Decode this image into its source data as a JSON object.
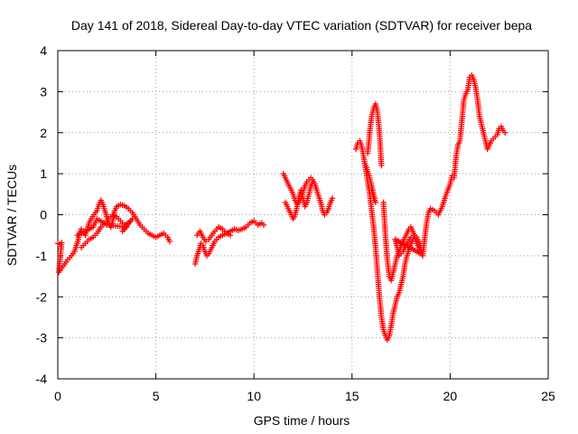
{
  "chart_data": {
    "type": "scatter",
    "title": "Day 141 of 2018, Sidereal Day-to-day VTEC variation (SDTVAR) for receiver bepa",
    "xlabel": "GPS time / hours",
    "ylabel": "SDTVAR / TECUs",
    "xlim": [
      0,
      25
    ],
    "ylim": [
      -4,
      4
    ],
    "xticks": [
      0,
      5,
      10,
      15,
      20,
      25
    ],
    "yticks": [
      -4,
      -3,
      -2,
      -1,
      0,
      1,
      2,
      3,
      4
    ],
    "xtick_labels": [
      "0",
      "5",
      "10",
      "15",
      "20",
      "25"
    ],
    "ytick_labels": [
      "-4",
      "-3",
      "-2",
      "-1",
      "0",
      "1",
      "2",
      "3",
      "4"
    ],
    "grid": true,
    "marker": "+",
    "color": "#ff0000",
    "series": [
      {
        "name": "SDTVAR",
        "segments": [
          [
            [
              0.0,
              -0.7
            ],
            [
              0.1,
              -0.72
            ],
            [
              0.2,
              -0.68
            ],
            [
              0.05,
              -1.4
            ],
            [
              0.2,
              -1.3
            ],
            [
              0.35,
              -1.2
            ],
            [
              0.5,
              -1.1
            ],
            [
              0.7,
              -1.0
            ],
            [
              0.85,
              -0.9
            ],
            [
              0.95,
              -0.75
            ],
            [
              1.05,
              -0.6
            ],
            [
              1.1,
              -0.45
            ],
            [
              1.2,
              -0.35
            ],
            [
              1.3,
              -0.4
            ],
            [
              1.4,
              -0.5
            ],
            [
              1.5,
              -0.35
            ],
            [
              1.6,
              -0.2
            ],
            [
              1.7,
              -0.1
            ],
            [
              1.85,
              0.0
            ],
            [
              2.0,
              0.1
            ],
            [
              2.1,
              0.25
            ],
            [
              2.2,
              0.35
            ],
            [
              2.3,
              0.25
            ],
            [
              2.4,
              0.1
            ],
            [
              2.5,
              -0.05
            ],
            [
              2.6,
              -0.2
            ],
            [
              2.7,
              -0.3
            ],
            [
              2.8,
              -0.15
            ],
            [
              2.9,
              0.1
            ],
            [
              3.0,
              0.2
            ],
            [
              3.2,
              0.25
            ],
            [
              3.4,
              0.22
            ],
            [
              3.6,
              0.15
            ],
            [
              3.8,
              0.05
            ],
            [
              4.0,
              -0.1
            ],
            [
              4.2,
              -0.25
            ],
            [
              4.4,
              -0.35
            ],
            [
              4.6,
              -0.45
            ],
            [
              4.8,
              -0.5
            ],
            [
              5.0,
              -0.55
            ],
            [
              5.2,
              -0.5
            ],
            [
              5.4,
              -0.45
            ],
            [
              5.6,
              -0.55
            ],
            [
              5.7,
              -0.65
            ],
            [
              1.2,
              -0.8
            ],
            [
              1.4,
              -0.7
            ],
            [
              1.6,
              -0.6
            ],
            [
              1.8,
              -0.55
            ],
            [
              2.0,
              -0.45
            ],
            [
              2.2,
              -0.3
            ],
            [
              2.4,
              -0.2
            ],
            [
              2.6,
              -0.1
            ],
            [
              2.8,
              0.0
            ],
            [
              3.0,
              -0.05
            ],
            [
              3.2,
              -0.15
            ],
            [
              3.4,
              -0.25
            ],
            [
              3.6,
              -0.2
            ],
            [
              3.8,
              -0.1
            ],
            [
              3.3,
              -0.4
            ],
            [
              3.5,
              -0.3
            ],
            [
              2.5,
              -0.25
            ],
            [
              2.0,
              -0.1
            ],
            [
              1.8,
              -0.3
            ],
            [
              1.0,
              -0.5
            ]
          ],
          [
            [
              7.0,
              -1.2
            ],
            [
              7.1,
              -1.0
            ],
            [
              7.2,
              -0.85
            ],
            [
              7.3,
              -0.7
            ],
            [
              7.4,
              -0.75
            ],
            [
              7.5,
              -0.9
            ],
            [
              7.6,
              -1.0
            ],
            [
              7.7,
              -0.95
            ],
            [
              7.8,
              -0.85
            ],
            [
              7.9,
              -0.75
            ],
            [
              8.0,
              -0.65
            ],
            [
              8.2,
              -0.55
            ],
            [
              8.4,
              -0.5
            ],
            [
              8.6,
              -0.45
            ],
            [
              8.8,
              -0.4
            ],
            [
              9.0,
              -0.35
            ],
            [
              9.2,
              -0.38
            ],
            [
              9.4,
              -0.35
            ],
            [
              9.6,
              -0.3
            ],
            [
              9.8,
              -0.2
            ],
            [
              10.0,
              -0.15
            ],
            [
              10.2,
              -0.25
            ],
            [
              10.4,
              -0.2
            ],
            [
              10.5,
              -0.25
            ],
            [
              7.1,
              -0.5
            ],
            [
              7.25,
              -0.4
            ],
            [
              7.4,
              -0.55
            ],
            [
              7.55,
              -0.65
            ],
            [
              7.7,
              -0.6
            ],
            [
              7.85,
              -0.5
            ],
            [
              8.0,
              -0.4
            ],
            [
              8.2,
              -0.3
            ],
            [
              8.4,
              -0.35
            ],
            [
              8.6,
              -0.45
            ],
            [
              8.8,
              -0.5
            ]
          ],
          [
            [
              11.5,
              1.0
            ],
            [
              11.6,
              0.9
            ],
            [
              11.7,
              0.8
            ],
            [
              11.8,
              0.7
            ],
            [
              11.9,
              0.6
            ],
            [
              12.0,
              0.5
            ],
            [
              12.1,
              0.35
            ],
            [
              12.2,
              0.25
            ],
            [
              12.3,
              0.3
            ],
            [
              12.4,
              0.4
            ],
            [
              12.5,
              0.55
            ],
            [
              12.6,
              0.7
            ],
            [
              12.7,
              0.8
            ],
            [
              12.8,
              0.85
            ],
            [
              12.9,
              0.9
            ],
            [
              13.0,
              0.85
            ],
            [
              13.1,
              0.75
            ],
            [
              13.2,
              0.6
            ],
            [
              13.3,
              0.45
            ],
            [
              13.4,
              0.3
            ],
            [
              13.5,
              0.1
            ],
            [
              13.6,
              0.0
            ],
            [
              13.7,
              0.05
            ],
            [
              13.8,
              0.15
            ],
            [
              13.9,
              0.3
            ],
            [
              14.0,
              0.4
            ],
            [
              11.6,
              0.3
            ],
            [
              11.7,
              0.2
            ],
            [
              11.8,
              0.1
            ],
            [
              11.9,
              0.0
            ],
            [
              12.0,
              -0.1
            ],
            [
              12.1,
              0.0
            ],
            [
              12.2,
              0.2
            ],
            [
              12.3,
              0.45
            ],
            [
              12.4,
              0.6
            ],
            [
              12.5,
              0.4
            ],
            [
              12.6,
              0.2
            ],
            [
              12.7,
              0.3
            ],
            [
              12.8,
              0.5
            ],
            [
              12.9,
              0.7
            ],
            [
              13.0,
              0.8
            ]
          ],
          [
            [
              15.2,
              1.6
            ],
            [
              15.3,
              1.75
            ],
            [
              15.4,
              1.8
            ],
            [
              15.5,
              1.65
            ],
            [
              15.6,
              1.4
            ],
            [
              15.7,
              1.1
            ],
            [
              15.8,
              0.8
            ],
            [
              15.9,
              0.5
            ],
            [
              16.0,
              0.1
            ],
            [
              16.1,
              -0.3
            ],
            [
              16.2,
              -0.8
            ],
            [
              16.3,
              -1.4
            ],
            [
              16.4,
              -2.0
            ],
            [
              16.5,
              -2.5
            ],
            [
              16.6,
              -2.8
            ],
            [
              16.7,
              -2.95
            ],
            [
              16.8,
              -3.05
            ],
            [
              16.9,
              -2.95
            ],
            [
              17.0,
              -2.7
            ],
            [
              17.1,
              -2.4
            ],
            [
              17.2,
              -2.2
            ],
            [
              17.3,
              -2.0
            ],
            [
              17.4,
              -1.9
            ],
            [
              17.5,
              -1.7
            ],
            [
              17.6,
              -1.5
            ],
            [
              17.7,
              -1.2
            ],
            [
              17.8,
              -1.0
            ],
            [
              17.9,
              -0.85
            ],
            [
              18.0,
              -0.7
            ],
            [
              18.1,
              -0.6
            ],
            [
              18.2,
              -0.5
            ],
            [
              18.3,
              -0.55
            ],
            [
              18.4,
              -0.65
            ],
            [
              18.5,
              -0.8
            ],
            [
              18.6,
              -1.0
            ],
            [
              18.7,
              -0.6
            ],
            [
              18.8,
              -0.2
            ],
            [
              18.9,
              0.05
            ],
            [
              19.0,
              0.15
            ],
            [
              19.2,
              0.1
            ],
            [
              19.4,
              0.0
            ],
            [
              19.6,
              0.2
            ],
            [
              19.8,
              0.5
            ],
            [
              20.0,
              0.75
            ],
            [
              20.1,
              0.95
            ],
            [
              20.2,
              0.9
            ],
            [
              20.3,
              1.4
            ],
            [
              20.4,
              1.7
            ],
            [
              20.5,
              1.8
            ],
            [
              20.6,
              2.3
            ],
            [
              20.7,
              2.8
            ],
            [
              20.8,
              2.95
            ],
            [
              20.9,
              3.05
            ],
            [
              21.0,
              3.35
            ],
            [
              21.1,
              3.4
            ],
            [
              21.2,
              3.3
            ],
            [
              21.3,
              3.1
            ],
            [
              21.4,
              2.8
            ],
            [
              21.5,
              2.4
            ],
            [
              21.6,
              2.2
            ],
            [
              21.7,
              2.0
            ],
            [
              21.8,
              1.8
            ],
            [
              21.9,
              1.6
            ],
            [
              22.0,
              1.7
            ],
            [
              22.1,
              1.8
            ],
            [
              22.2,
              1.85
            ],
            [
              22.4,
              1.95
            ],
            [
              22.5,
              2.1
            ],
            [
              22.6,
              2.15
            ],
            [
              22.7,
              2.05
            ],
            [
              22.8,
              2.0
            ],
            [
              15.8,
              1.5
            ],
            [
              15.9,
              2.0
            ],
            [
              16.0,
              2.4
            ],
            [
              16.1,
              2.6
            ],
            [
              16.2,
              2.7
            ],
            [
              16.3,
              2.5
            ],
            [
              16.4,
              2.0
            ],
            [
              16.5,
              1.2
            ],
            [
              16.6,
              0.3
            ],
            [
              16.7,
              -0.5
            ],
            [
              16.8,
              -1.1
            ],
            [
              16.9,
              -1.5
            ],
            [
              17.0,
              -1.6
            ],
            [
              17.1,
              -1.4
            ],
            [
              17.2,
              -1.2
            ],
            [
              17.3,
              -1.0
            ],
            [
              17.4,
              -0.9
            ],
            [
              17.5,
              -0.75
            ],
            [
              17.6,
              -0.65
            ],
            [
              17.7,
              -0.55
            ],
            [
              17.8,
              -0.45
            ],
            [
              17.9,
              -0.35
            ],
            [
              18.0,
              -0.3
            ],
            [
              18.1,
              -0.4
            ],
            [
              18.2,
              -0.55
            ],
            [
              18.3,
              -0.7
            ],
            [
              18.4,
              -0.8
            ],
            [
              18.5,
              -0.95
            ],
            [
              17.2,
              -0.6
            ],
            [
              17.3,
              -0.8
            ],
            [
              17.4,
              -1.0
            ],
            [
              17.6,
              -0.9
            ],
            [
              17.8,
              -0.7
            ],
            [
              18.0,
              -0.55
            ],
            [
              16.0,
              0.6
            ],
            [
              16.1,
              0.4
            ],
            [
              16.2,
              0.3
            ],
            [
              15.9,
              0.9
            ],
            [
              15.7,
              1.2
            ]
          ]
        ]
      }
    ]
  }
}
